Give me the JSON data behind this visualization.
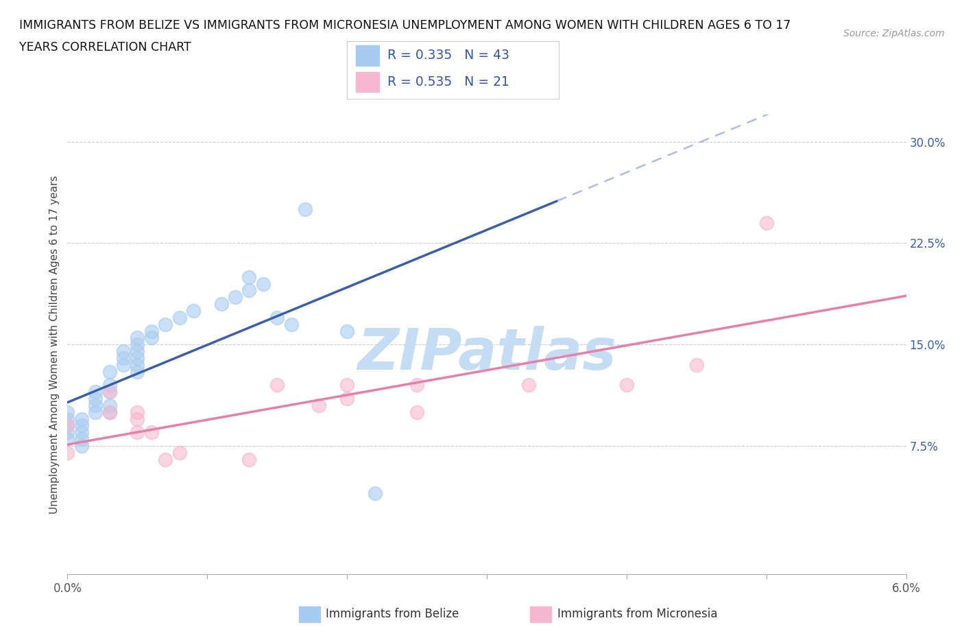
{
  "title_line1": "IMMIGRANTS FROM BELIZE VS IMMIGRANTS FROM MICRONESIA UNEMPLOYMENT AMONG WOMEN WITH CHILDREN AGES 6 TO 17",
  "title_line2": "YEARS CORRELATION CHART",
  "source": "Source: ZipAtlas.com",
  "ylabel": "Unemployment Among Women with Children Ages 6 to 17 years",
  "xlim": [
    0.0,
    0.06
  ],
  "ylim": [
    -0.02,
    0.32
  ],
  "plot_ylim": [
    0.0,
    0.3
  ],
  "xtick_positions": [
    0.0,
    0.01,
    0.02,
    0.03,
    0.04,
    0.05,
    0.06
  ],
  "xticklabels_ends": {
    "0": "0.0%",
    "6": "6.0%"
  },
  "yticks_right": [
    0.075,
    0.15,
    0.225,
    0.3
  ],
  "yticklabels_right": [
    "7.5%",
    "15.0%",
    "22.5%",
    "30.0%"
  ],
  "belize_color": "#A8CCF0",
  "micronesia_color": "#F5B8CE",
  "belize_line_color": "#3A5FA8",
  "micronesia_line_color": "#E87FA8",
  "micronesia_dash_color": "#AABCE8",
  "R_belize": 0.335,
  "N_belize": 43,
  "R_micronesia": 0.535,
  "N_micronesia": 21,
  "belize_x": [
    0.0,
    0.0,
    0.0,
    0.0,
    0.0,
    0.003,
    0.004,
    0.003,
    0.003,
    0.003,
    0.003,
    0.002,
    0.002,
    0.002,
    0.002,
    0.001,
    0.001,
    0.001,
    0.001,
    0.001,
    0.004,
    0.004,
    0.005,
    0.005,
    0.005,
    0.005,
    0.005,
    0.005,
    0.006,
    0.006,
    0.007,
    0.008,
    0.009,
    0.011,
    0.012,
    0.013,
    0.013,
    0.014,
    0.015,
    0.016,
    0.017,
    0.02,
    0.022
  ],
  "belize_y": [
    0.1,
    0.095,
    0.09,
    0.085,
    0.08,
    0.13,
    0.135,
    0.12,
    0.115,
    0.1,
    0.105,
    0.115,
    0.11,
    0.105,
    0.1,
    0.095,
    0.09,
    0.085,
    0.08,
    0.075,
    0.14,
    0.145,
    0.155,
    0.15,
    0.145,
    0.14,
    0.135,
    0.13,
    0.16,
    0.155,
    0.165,
    0.17,
    0.175,
    0.18,
    0.185,
    0.19,
    0.2,
    0.195,
    0.17,
    0.165,
    0.25,
    0.16,
    0.04
  ],
  "micronesia_x": [
    0.0,
    0.0,
    0.003,
    0.003,
    0.005,
    0.005,
    0.005,
    0.006,
    0.007,
    0.008,
    0.013,
    0.015,
    0.018,
    0.02,
    0.02,
    0.025,
    0.025,
    0.033,
    0.04,
    0.045,
    0.05
  ],
  "micronesia_y": [
    0.07,
    0.09,
    0.1,
    0.115,
    0.095,
    0.085,
    0.1,
    0.085,
    0.065,
    0.07,
    0.065,
    0.12,
    0.105,
    0.12,
    0.11,
    0.12,
    0.1,
    0.12,
    0.12,
    0.135,
    0.24
  ],
  "background_color": "#FFFFFF",
  "grid_color": "#CCCCCC",
  "watermark_text": "ZIPatlas",
  "watermark_color": "#C5DCF5",
  "legend_R_N_color": "#3355AA",
  "bottom_legend_left_label": "Immigrants from Belize",
  "bottom_legend_right_label": "Immigrants from Micronesia"
}
